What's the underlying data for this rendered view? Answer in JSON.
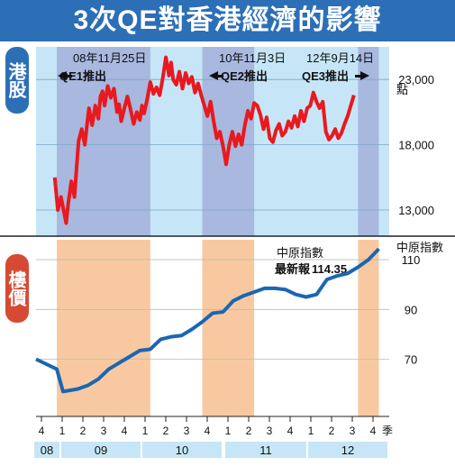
{
  "title": "3次QE對香港經濟的影響",
  "panels": {
    "stocks": {
      "tab_label": "港股",
      "unit": "點"
    },
    "property": {
      "tab_label": "樓價",
      "unit": "中原指數"
    }
  },
  "events": [
    {
      "date": "08年11月25日",
      "label": "QE1推出",
      "arrow": "left"
    },
    {
      "date": "10年11月3日",
      "label": "QE2推出",
      "arrow": "left"
    },
    {
      "date": "12年9月14日",
      "label": "QE3推出",
      "arrow": "right"
    }
  ],
  "colors": {
    "banner": "#2c6fb7",
    "stock_bg": "#c6e6f7",
    "stock_shade": "#a8b8df",
    "property_shade": "#f8c9a0",
    "stock_line": "#e8191f",
    "property_line": "#1b66b3",
    "property_tab": "#d64a34"
  },
  "chart_data": [
    {
      "type": "line",
      "name": "港股",
      "ylabel": "點",
      "ylim": [
        11000,
        25500
      ],
      "yticks": [
        13000,
        18000,
        23000
      ],
      "ytick_labels": [
        "13,000",
        "18,000",
        "23,000"
      ],
      "xlim": [
        0,
        17
      ],
      "x": [
        0.9,
        1.05,
        1.2,
        1.35,
        1.45,
        1.55,
        1.7,
        1.85,
        1.95,
        2.05,
        2.2,
        2.35,
        2.45,
        2.55,
        2.7,
        2.85,
        3.0,
        3.1,
        3.2,
        3.3,
        3.45,
        3.6,
        3.75,
        3.9,
        4.0,
        4.1,
        4.25,
        4.4,
        4.55,
        4.7,
        4.85,
        5.0,
        5.1,
        5.2,
        5.35,
        5.5,
        5.65,
        5.8,
        5.95,
        6.1,
        6.25,
        6.4,
        6.5,
        6.6,
        6.75,
        6.9,
        7.05,
        7.2,
        7.35,
        7.5,
        7.65,
        7.8,
        7.95,
        8.1,
        8.25,
        8.4,
        8.55,
        8.7,
        8.85,
        9.0,
        9.15,
        9.3,
        9.45,
        9.6,
        9.75,
        9.9,
        10.05,
        10.2,
        10.35,
        10.5,
        10.65,
        10.8,
        10.95,
        11.1,
        11.25,
        11.4,
        11.55,
        11.7,
        11.85,
        12.0,
        12.15,
        12.3,
        12.45,
        12.6,
        12.75,
        12.9,
        13.05,
        13.2,
        13.35,
        13.5,
        13.65,
        13.8,
        13.95,
        14.1,
        14.25,
        14.4,
        14.55,
        14.7,
        14.85,
        15.0,
        15.15,
        15.3
      ],
      "values": [
        15500,
        13000,
        14000,
        12800,
        12000,
        13500,
        15200,
        14000,
        16200,
        18300,
        19200,
        18000,
        19500,
        20800,
        19500,
        21000,
        20000,
        21700,
        22100,
        21000,
        22500,
        21600,
        22300,
        20500,
        21100,
        19800,
        20800,
        21700,
        20700,
        19600,
        20500,
        19900,
        21000,
        20400,
        21500,
        22800,
        21900,
        22400,
        21800,
        23100,
        24700,
        23300,
        24300,
        23000,
        22600,
        23600,
        22300,
        23500,
        22700,
        23200,
        22000,
        22700,
        21800,
        21000,
        20200,
        21300,
        19800,
        18500,
        19000,
        17900,
        16500,
        18000,
        19000,
        17900,
        18800,
        18000,
        19500,
        20600,
        20000,
        21200,
        21000,
        20300,
        19200,
        20100,
        18500,
        18200,
        19100,
        19600,
        18700,
        19000,
        19800,
        19300,
        20200,
        19400,
        20600,
        19800,
        20800,
        21000,
        22000,
        21300,
        20800,
        21300,
        19000,
        18400,
        18700,
        19200,
        18500,
        18900,
        19600,
        20200,
        21000,
        21800
      ]
    },
    {
      "type": "line",
      "name": "中原指數",
      "ylabel": "中原指數",
      "ylim": [
        47,
        118
      ],
      "yticks": [
        70,
        90,
        110
      ],
      "xlim": [
        0,
        17
      ],
      "x": [
        0,
        1,
        1.3,
        2,
        2.5,
        3,
        3.5,
        4,
        4.5,
        5,
        5.5,
        6,
        6.5,
        7,
        7.5,
        8,
        8.5,
        9,
        9.5,
        10,
        10.5,
        11,
        11.5,
        12,
        12.5,
        13,
        13.5,
        14,
        14.5,
        15,
        15.5,
        16,
        16.5
      ],
      "values": [
        70,
        66,
        57,
        58,
        59.5,
        62,
        66,
        68.5,
        71,
        73.5,
        74,
        78,
        79,
        79.5,
        82,
        85,
        88.5,
        89,
        93.5,
        95.5,
        97,
        98.5,
        98.5,
        98,
        96,
        95,
        96,
        102,
        103.5,
        104.5,
        107,
        110,
        114.35
      ],
      "annotation": {
        "title": "中原指數",
        "label": "最新報",
        "value": "114.35"
      }
    }
  ],
  "x_axis": {
    "quarters": [
      "4",
      "1",
      "2",
      "3",
      "4",
      "1",
      "2",
      "3",
      "4",
      "1",
      "2",
      "3",
      "4",
      "1",
      "2",
      "3",
      "4"
    ],
    "quarter_unit": "季",
    "years": [
      {
        "label": "08"
      },
      {
        "label": "09"
      },
      {
        "label": "10"
      },
      {
        "label": "11"
      },
      {
        "label": "12"
      }
    ]
  },
  "shaded_periods": [
    [
      1,
      5.5
    ],
    [
      8,
      10.5
    ],
    [
      15.5,
      16.5
    ]
  ]
}
